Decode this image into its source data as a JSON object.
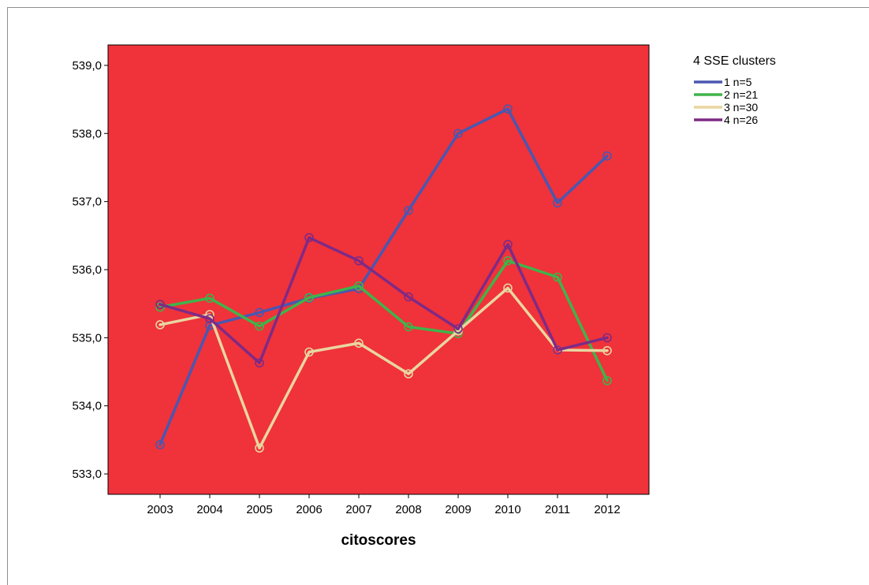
{
  "chart_data": {
    "type": "line",
    "title": "",
    "xlabel": "citoscores",
    "ylabel": "",
    "x": [
      "2003",
      "2004",
      "2005",
      "2006",
      "2007",
      "2008",
      "2009",
      "2010",
      "2011",
      "2012"
    ],
    "y_ticks": [
      "533,0",
      "534,0",
      "535,0",
      "536,0",
      "537,0",
      "538,0",
      "539,0"
    ],
    "ylim": [
      532.7,
      539.3
    ],
    "plot_background": "#f0323a",
    "grid": false,
    "legend": {
      "title": "4 SSE clusters",
      "position": "right"
    },
    "series": [
      {
        "name": "1 n=5",
        "color": "#4a57b0",
        "values": [
          533.43,
          535.18,
          535.37,
          535.58,
          535.72,
          536.87,
          538.0,
          538.36,
          536.98,
          537.67
        ]
      },
      {
        "name": "2 n=21",
        "color": "#3fb44a",
        "values": [
          535.45,
          535.58,
          535.17,
          535.59,
          535.76,
          535.16,
          535.06,
          536.13,
          535.89,
          534.37
        ]
      },
      {
        "name": "3 n=30",
        "color": "#e8d6a0",
        "values": [
          535.19,
          535.34,
          533.38,
          534.79,
          534.92,
          534.47,
          535.1,
          535.73,
          534.82,
          534.81
        ]
      },
      {
        "name": "4 n=26",
        "color": "#7e2a86",
        "values": [
          535.49,
          535.28,
          534.63,
          536.47,
          536.13,
          535.6,
          535.13,
          536.37,
          534.82,
          535.0
        ]
      }
    ]
  }
}
